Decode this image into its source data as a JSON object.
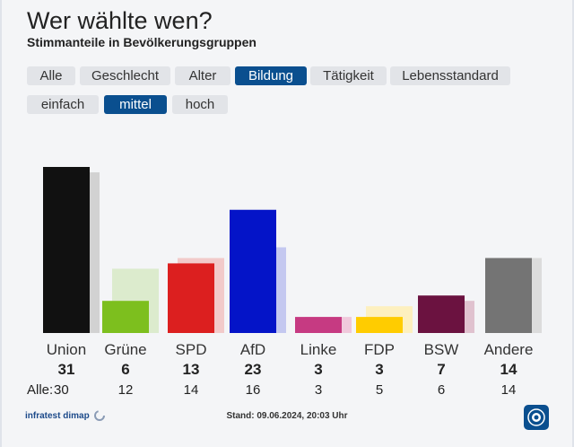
{
  "header": {
    "title": "Wer wählte wen?",
    "subtitle": "Stimmanteile in Bevölkerungsgruppen"
  },
  "tabs": [
    {
      "label": "Alle",
      "active": false
    },
    {
      "label": "Geschlecht",
      "active": false
    },
    {
      "label": "Alter",
      "active": false
    },
    {
      "label": "Bildung",
      "active": true
    },
    {
      "label": "Tätigkeit",
      "active": false
    },
    {
      "label": "Lebensstandard",
      "active": false
    }
  ],
  "subtabs": [
    {
      "label": "einfach",
      "active": false
    },
    {
      "label": "mittel",
      "active": true
    },
    {
      "label": "hoch",
      "active": false
    }
  ],
  "chart_data": {
    "type": "bar",
    "title": "Stimmanteile in Bevölkerungsgruppen",
    "categories": [
      "Union",
      "Grüne",
      "SPD",
      "AfD",
      "Linke",
      "FDP",
      "BSW",
      "Andere"
    ],
    "series": [
      {
        "name": "mittel",
        "values": [
          31,
          6,
          13,
          23,
          3,
          3,
          7,
          14
        ]
      },
      {
        "name": "Alle",
        "values": [
          30,
          12,
          14,
          16,
          3,
          5,
          6,
          14
        ]
      }
    ],
    "colors": [
      "#111111",
      "#7dbf1e",
      "#dc1f1f",
      "#0414c8",
      "#c63a82",
      "#ffcc00",
      "#6b1240",
      "#747474"
    ],
    "shadow_colors": [
      "#d2d2d2",
      "#dcebcd",
      "#f2caca",
      "#c4c8f0",
      "#f0c9dc",
      "#fdf0bf",
      "#e0c2cf",
      "#dcdcdc"
    ],
    "all_label": "Alle:",
    "ylim": [
      0,
      31
    ]
  },
  "footer": {
    "source": "infratest dimap",
    "stand": "Stand: 09.06.2024, 20:03 Uhr"
  }
}
